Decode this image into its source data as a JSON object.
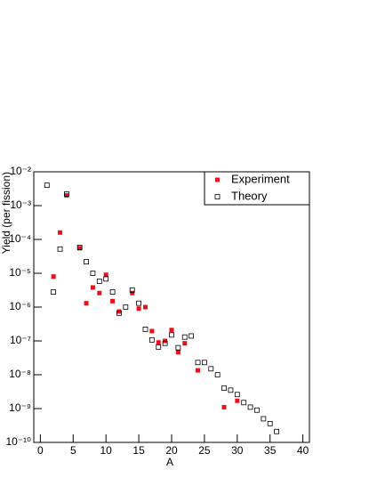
{
  "chart_data": {
    "type": "scatter",
    "log_y": true,
    "x_label": "A",
    "y_label": "Yield (per fission)",
    "xlim": [
      -1,
      41
    ],
    "xticks": [
      0,
      5,
      10,
      15,
      20,
      25,
      30,
      35,
      40
    ],
    "ylim": [
      1e-10,
      0.01
    ],
    "yticks": [
      {
        "value": 0.01,
        "label": "10⁻²"
      },
      {
        "value": 0.001,
        "label": "10⁻³"
      },
      {
        "value": 0.0001,
        "label": "10⁻⁴"
      },
      {
        "value": 1e-05,
        "label": "10⁻⁵"
      },
      {
        "value": 1e-06,
        "label": "10⁻⁶"
      },
      {
        "value": 1e-07,
        "label": "10⁻⁷"
      },
      {
        "value": 1e-08,
        "label": "10⁻⁸"
      },
      {
        "value": 1e-09,
        "label": "10⁻⁹"
      },
      {
        "value": 1e-10,
        "label": "10⁻¹⁰"
      }
    ],
    "legend": "top-right",
    "series": [
      {
        "name": "Experiment",
        "color": "#e8121e",
        "marker": "filled-square",
        "x": [
          2,
          3,
          4,
          6,
          7,
          8,
          9,
          10,
          11,
          12,
          14,
          15,
          16,
          17,
          18,
          19,
          20,
          21,
          22,
          24,
          28,
          30
        ],
        "values": [
          8e-06,
          0.00016,
          0.002,
          5.5e-05,
          1.3e-06,
          3.8e-06,
          2.6e-06,
          9e-06,
          1.5e-06,
          7.4e-07,
          2.6e-06,
          9e-07,
          1e-06,
          1.95e-07,
          9e-08,
          1e-07,
          2.1e-07,
          4.6e-08,
          8.5e-08,
          1.35e-08,
          1.1e-09,
          1.7e-09
        ]
      },
      {
        "name": "Theory",
        "color": "#000000",
        "marker": "open-square",
        "x": [
          1,
          2,
          3,
          4,
          6,
          7,
          8,
          9,
          10,
          11,
          12,
          13,
          14,
          15,
          16,
          17,
          18,
          19,
          20,
          21,
          22,
          23,
          24,
          25,
          26,
          27,
          28,
          29,
          30,
          31,
          32,
          33,
          34,
          35,
          36
        ],
        "values": [
          0.004,
          2.8e-06,
          5.2e-05,
          0.0022,
          5.8e-05,
          2.2e-05,
          1e-05,
          5.8e-06,
          6.8e-06,
          2.8e-06,
          6.6e-07,
          1e-06,
          3.2e-06,
          1.3e-06,
          2.2e-07,
          1.07e-07,
          6.6e-08,
          8.5e-08,
          1.5e-07,
          6.3e-08,
          1.3e-07,
          1.4e-07,
          2.3e-08,
          2.3e-08,
          1.5e-08,
          1e-08,
          4e-09,
          3.5e-09,
          2.6e-09,
          1.5e-09,
          1.1e-09,
          9e-10,
          5e-10,
          3.6e-10,
          2.1e-10
        ]
      }
    ]
  }
}
